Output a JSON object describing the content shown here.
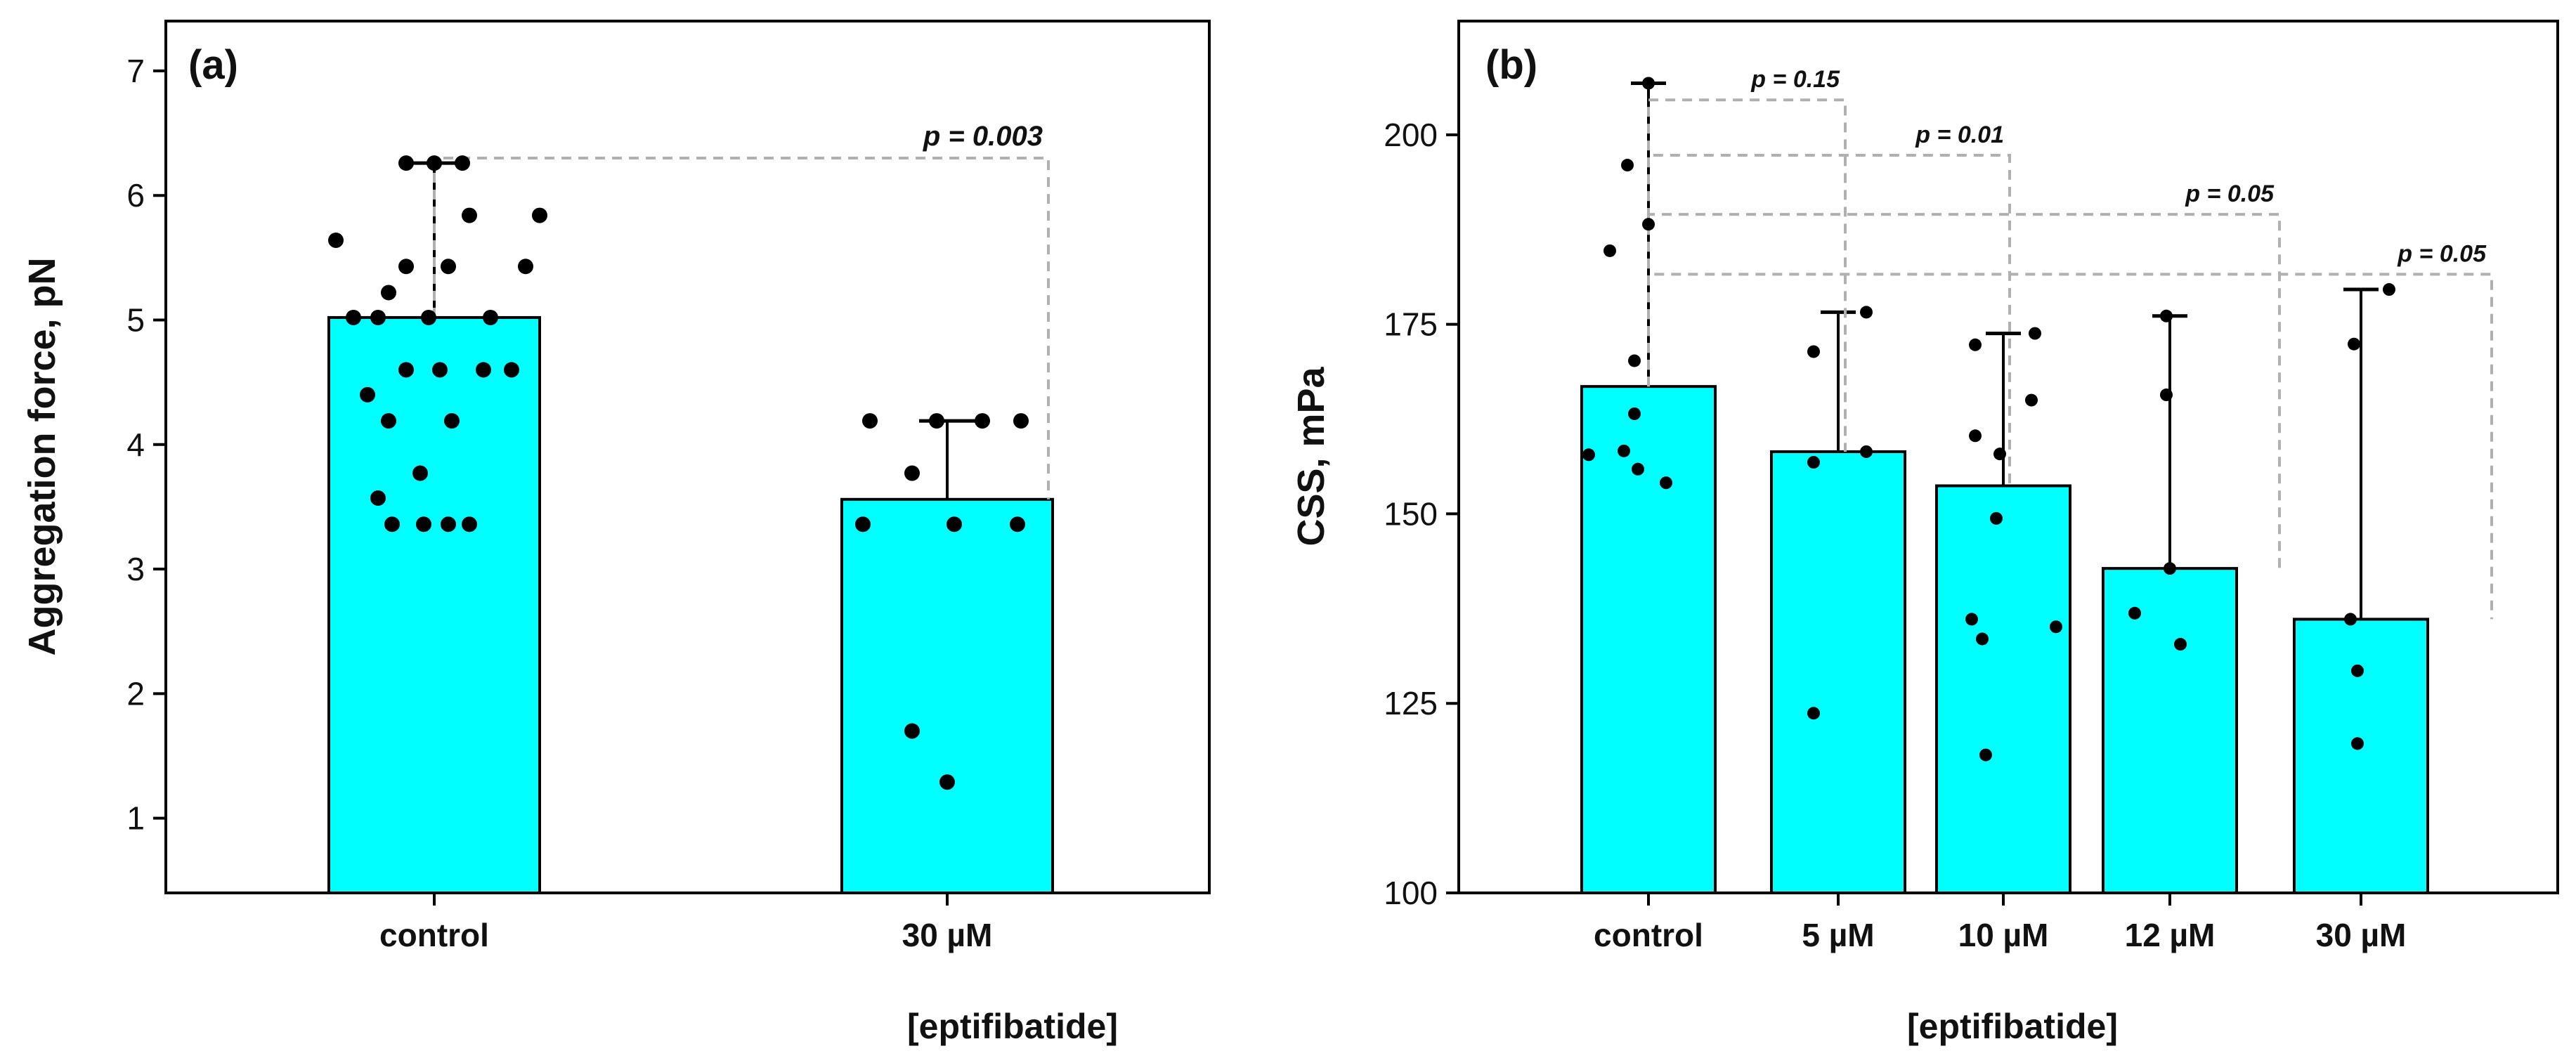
{
  "chart_data": [
    {
      "type": "bar",
      "panel_label": "(a)",
      "title": "",
      "xlabel": "[eptifibatide]",
      "ylabel": "Aggregation force, pN",
      "ylim": [
        0.4,
        7.4
      ],
      "yticks": [
        1,
        2,
        3,
        4,
        5,
        6,
        7
      ],
      "bar_color": "#00ffff",
      "grid": false,
      "legend": "none",
      "categories": [
        "control",
        "30 µM"
      ],
      "values": [
        5.02,
        3.56
      ],
      "error_upper": [
        6.26,
        4.19
      ],
      "points": [
        [
          6.26,
          6.26,
          6.26,
          5.64,
          5.84,
          5.84,
          5.43,
          5.43,
          5.43,
          5.22,
          5.02,
          5.02,
          5.02,
          5.02,
          4.6,
          4.6,
          4.6,
          4.6,
          4.4,
          4.19,
          4.19,
          3.77,
          3.57,
          3.36,
          3.36,
          3.36,
          3.36
        ],
        [
          4.19,
          4.19,
          4.19,
          4.19,
          3.77,
          3.36,
          3.36,
          3.36,
          1.7,
          1.29
        ]
      ],
      "comparisons": [
        {
          "from": 0,
          "to": 1,
          "y": 6.3,
          "label": "p = 0.003"
        }
      ]
    },
    {
      "type": "bar",
      "panel_label": "(b)",
      "title": "",
      "xlabel": "[eptifibatide]",
      "ylabel": "CSS, mPa",
      "ylim": [
        100,
        215
      ],
      "yticks": [
        100,
        125,
        150,
        175,
        200
      ],
      "bar_color": "#00ffff",
      "grid": false,
      "legend": "none",
      "categories": [
        "control",
        "5 µM",
        "10 µM",
        "12 µM",
        "30 µM"
      ],
      "values": [
        166.8,
        158.2,
        153.7,
        142.8,
        136.1
      ],
      "error_upper": [
        206.8,
        176.6,
        173.8,
        176.1,
        179.6
      ],
      "points": [
        [
          206.8,
          196.0,
          188.2,
          184.7,
          170.2,
          163.2,
          158.3,
          157.8,
          155.9,
          154.1
        ],
        [
          176.6,
          171.4,
          158.2,
          156.8,
          123.7
        ],
        [
          173.8,
          172.3,
          165.0,
          160.3,
          157.9,
          149.4,
          136.1,
          135.1,
          133.5,
          118.2
        ],
        [
          176.1,
          165.7,
          142.8,
          136.9,
          132.8
        ],
        [
          179.6,
          172.4,
          136.1,
          129.3,
          119.7
        ]
      ],
      "comparisons": [
        {
          "from": 0,
          "to": 1,
          "y": 204.6,
          "label": "p = 0.15"
        },
        {
          "from": 0,
          "to": 2,
          "y": 197.3,
          "label": "p = 0.01"
        },
        {
          "from": 0,
          "to": 3,
          "y": 189.5,
          "label": "p = 0.05"
        },
        {
          "from": 0,
          "to": 4,
          "y": 181.6,
          "label": "p = 0.05"
        }
      ]
    }
  ]
}
